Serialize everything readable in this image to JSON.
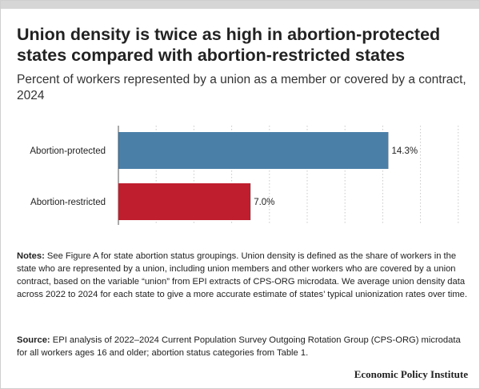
{
  "title": "Union density is twice as high in abortion-protected states compared with abortion-restricted states",
  "subtitle": "Percent of workers represented by a union as a member or covered by a contract, 2024",
  "chart_data": {
    "type": "bar",
    "orientation": "horizontal",
    "title": "Union density is twice as high in abortion-protected states compared with abortion-restricted states",
    "subtitle": "Percent of workers represented by a union as a member or covered by a contract, 2024",
    "categories": [
      "Abortion-protected",
      "Abortion-restricted"
    ],
    "values": [
      14.3,
      7.0
    ],
    "value_labels": [
      "14.3%",
      "7.0%"
    ],
    "colors": [
      "#4a7fa8",
      "#bf1e2e"
    ],
    "xlabel": "",
    "ylabel": "",
    "xlim": [
      0,
      18
    ],
    "grid": true
  },
  "notes": {
    "label": "Notes:",
    "text": " See Figure A for state abortion status groupings. Union density is defined as the share of workers in the state who are represented by a union, including union members and other workers who are covered by a union contract, based on the variable “union” from EPI extracts of CPS-ORG microdata. We average union density data across 2022 to 2024 for each state to give a more accurate estimate of states’ typical unionization rates over time."
  },
  "source": {
    "label": "Source:",
    "text": " EPI analysis of 2022–2024 Current Population Survey Outgoing Rotation Group (CPS-ORG) microdata for all workers ages 16 and older; abortion status categories from Table 1."
  },
  "brand": "Economic Policy Institute"
}
